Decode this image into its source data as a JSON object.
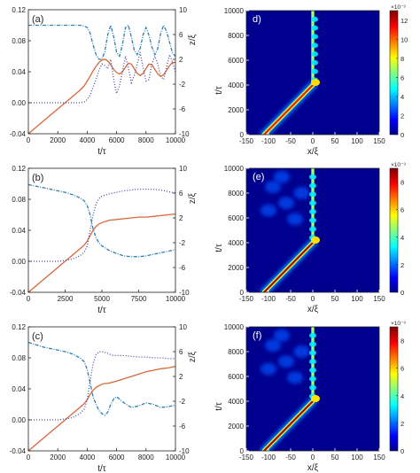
{
  "colors": {
    "curve_blue": "#2f7fb5",
    "curve_orange": "#d8673a",
    "curve_dot": "#4a4aa6",
    "axis": "#222222",
    "panel_bg": "#00008f"
  },
  "chart_data": [
    {
      "panel_label": "(a)",
      "type": "line",
      "xlabel": "t/τ",
      "ylabel_right": "z/ξ",
      "x_ticks": [
        "0",
        "2000",
        "4000",
        "6000",
        "8000",
        "10000"
      ],
      "y_left_ticks": [
        "-0.04",
        "0.00",
        "0.04",
        "0.08",
        "0.12"
      ],
      "y_right_ticks": [
        "-10",
        "-6",
        "-2",
        "2",
        "6",
        "10"
      ],
      "xlim": [
        0,
        10000
      ],
      "ylim_left": [
        -0.04,
        0.12
      ],
      "ylim_right": [
        -10,
        10
      ],
      "series": [
        {
          "x": [
            0,
            500,
            1000,
            1500,
            2000,
            2500,
            3000,
            3500,
            3800,
            4000,
            4200,
            4400,
            4600,
            4800,
            5000,
            5200,
            5400,
            5600,
            5800,
            6000,
            6200,
            6400,
            6600,
            6800,
            7000,
            7200,
            7400,
            7600,
            7800,
            8000,
            8200,
            8400,
            8600,
            8800,
            9000,
            9200,
            9400,
            9600,
            9800,
            10000
          ],
          "y": [
            0.1,
            0.1,
            0.1,
            0.1,
            0.1,
            0.1,
            0.1,
            0.1,
            0.099,
            0.097,
            0.09,
            0.075,
            0.062,
            0.056,
            0.056,
            0.066,
            0.088,
            0.1,
            0.085,
            0.065,
            0.06,
            0.075,
            0.097,
            0.1,
            0.085,
            0.068,
            0.062,
            0.07,
            0.088,
            0.097,
            0.087,
            0.072,
            0.062,
            0.07,
            0.09,
            0.1,
            0.092,
            0.078,
            0.064,
            0.06
          ]
        },
        {
          "x": [
            0,
            500,
            1000,
            1500,
            2000,
            2500,
            3000,
            3500,
            3800,
            4000,
            4200,
            4400,
            4600,
            4800,
            5000,
            5200,
            5400,
            5600,
            5800,
            6000,
            6200,
            6400,
            6600,
            6800,
            7000,
            7200,
            7400,
            7600,
            7800,
            8000,
            8200,
            8400,
            8600,
            8800,
            9000,
            9200,
            9400,
            9600,
            9800,
            10000
          ],
          "y": [
            -0.04,
            -0.032,
            -0.024,
            -0.016,
            -0.008,
            0.0,
            0.008,
            0.016,
            0.022,
            0.028,
            0.034,
            0.041,
            0.047,
            0.052,
            0.055,
            0.056,
            0.054,
            0.049,
            0.043,
            0.039,
            0.037,
            0.04,
            0.046,
            0.051,
            0.05,
            0.044,
            0.038,
            0.035,
            0.038,
            0.044,
            0.05,
            0.049,
            0.043,
            0.037,
            0.034,
            0.036,
            0.042,
            0.048,
            0.052,
            0.052
          ]
        },
        {
          "x": [
            0,
            500,
            1000,
            1500,
            2000,
            2500,
            3000,
            3500,
            3800,
            4000,
            4200,
            4400,
            4600,
            4800,
            5000,
            5200,
            5400,
            5600,
            5800,
            6000,
            6200,
            6400,
            6600,
            6800,
            7000,
            7200,
            7400,
            7600,
            7800,
            8000,
            8200,
            8400,
            8600,
            8800,
            9000,
            9200,
            9400,
            9600,
            9800,
            10000
          ],
          "y": [
            0.0,
            0.0,
            0.0,
            0.0,
            0.0,
            0.0,
            0.0,
            0.0,
            0.001,
            0.004,
            0.01,
            0.02,
            0.03,
            0.042,
            0.05,
            0.048,
            0.044,
            0.056,
            0.03,
            0.012,
            0.022,
            0.04,
            0.06,
            0.045,
            0.026,
            0.035,
            0.05,
            0.065,
            0.045,
            0.028,
            0.03,
            0.05,
            0.06,
            0.05,
            0.034,
            0.03,
            0.046,
            0.062,
            0.052,
            0.04
          ]
        }
      ]
    },
    {
      "panel_label": "(b)",
      "type": "line",
      "xlabel": "t/τ",
      "ylabel_right": "z/ξ",
      "x_ticks": [
        "0",
        "2500",
        "5000",
        "7500",
        "10000"
      ],
      "y_left_ticks": [
        "-0.04",
        "0.00",
        "0.04",
        "0.08",
        "0.12"
      ],
      "y_right_ticks": [
        "-10",
        "-6",
        "-2",
        "2",
        "6",
        "10"
      ],
      "xlim": [
        0,
        10000
      ],
      "ylim_left": [
        -0.04,
        0.12
      ],
      "ylim_right": [
        -10,
        10
      ],
      "series": [
        {
          "x": [
            0,
            500,
            1000,
            1500,
            2000,
            2500,
            3000,
            3500,
            3800,
            4000,
            4200,
            4400,
            4600,
            4800,
            5000,
            5500,
            6000,
            6500,
            7000,
            7500,
            8000,
            8500,
            9000,
            9500,
            10000
          ],
          "y": [
            0.099,
            0.097,
            0.095,
            0.093,
            0.091,
            0.089,
            0.086,
            0.082,
            0.078,
            0.072,
            0.06,
            0.042,
            0.03,
            0.024,
            0.02,
            0.014,
            0.01,
            0.007,
            0.006,
            0.006,
            0.007,
            0.009,
            0.011,
            0.013,
            0.015
          ]
        },
        {
          "x": [
            0,
            500,
            1000,
            1500,
            2000,
            2500,
            3000,
            3500,
            3800,
            4000,
            4200,
            4400,
            4600,
            4800,
            5000,
            5500,
            6000,
            6500,
            7000,
            7500,
            8000,
            8500,
            9000,
            9500,
            10000
          ],
          "y": [
            -0.04,
            -0.032,
            -0.024,
            -0.016,
            -0.008,
            0.0,
            0.008,
            0.016,
            0.021,
            0.026,
            0.033,
            0.04,
            0.045,
            0.048,
            0.05,
            0.053,
            0.054,
            0.055,
            0.056,
            0.057,
            0.057,
            0.058,
            0.059,
            0.06,
            0.061
          ]
        },
        {
          "x": [
            0,
            500,
            1000,
            1500,
            2000,
            2500,
            3000,
            3500,
            3800,
            4000,
            4200,
            4400,
            4600,
            4800,
            5000,
            5500,
            6000,
            6500,
            7000,
            7500,
            8000,
            8500,
            9000,
            9500,
            10000
          ],
          "y": [
            0.0,
            0.0,
            0.0,
            0.0,
            0.0,
            0.001,
            0.003,
            0.007,
            0.012,
            0.02,
            0.04,
            0.06,
            0.074,
            0.081,
            0.084,
            0.087,
            0.089,
            0.091,
            0.092,
            0.093,
            0.093,
            0.093,
            0.092,
            0.09,
            0.088
          ]
        }
      ]
    },
    {
      "panel_label": "(c)",
      "type": "line",
      "xlabel": "t/τ",
      "ylabel_right": "z/ξ",
      "x_ticks": [
        "0",
        "2000",
        "4000",
        "6000",
        "8000",
        "10000"
      ],
      "y_left_ticks": [
        "-0.04",
        "0.00",
        "0.04",
        "0.08",
        "0.12"
      ],
      "y_right_ticks": [
        "-10",
        "-6",
        "-2",
        "2",
        "6",
        "10"
      ],
      "xlim": [
        0,
        10000
      ],
      "ylim_left": [
        -0.04,
        0.12
      ],
      "ylim_right": [
        -10,
        10
      ],
      "series": [
        {
          "x": [
            0,
            500,
            1000,
            1500,
            2000,
            2500,
            3000,
            3500,
            3800,
            4000,
            4200,
            4400,
            4600,
            4800,
            5000,
            5200,
            5400,
            5600,
            5800,
            6000,
            6500,
            7000,
            7500,
            8000,
            8500,
            9000,
            9500,
            10000
          ],
          "y": [
            0.1,
            0.097,
            0.094,
            0.092,
            0.09,
            0.088,
            0.085,
            0.08,
            0.075,
            0.065,
            0.048,
            0.03,
            0.02,
            0.012,
            0.008,
            0.006,
            0.01,
            0.02,
            0.027,
            0.03,
            0.022,
            0.016,
            0.018,
            0.022,
            0.02,
            0.016,
            0.017,
            0.019
          ]
        },
        {
          "x": [
            0,
            500,
            1000,
            1500,
            2000,
            2500,
            3000,
            3500,
            3800,
            4000,
            4200,
            4400,
            4600,
            4800,
            5000,
            5200,
            5400,
            5600,
            5800,
            6000,
            6500,
            7000,
            7500,
            8000,
            8500,
            9000,
            9500,
            10000
          ],
          "y": [
            -0.04,
            -0.032,
            -0.024,
            -0.016,
            -0.008,
            0.0,
            0.008,
            0.016,
            0.021,
            0.026,
            0.033,
            0.038,
            0.042,
            0.044,
            0.046,
            0.047,
            0.047,
            0.048,
            0.049,
            0.05,
            0.053,
            0.056,
            0.059,
            0.062,
            0.064,
            0.066,
            0.067,
            0.069
          ]
        },
        {
          "x": [
            0,
            500,
            1000,
            1500,
            2000,
            2500,
            3000,
            3500,
            3800,
            4000,
            4200,
            4400,
            4600,
            4800,
            5000,
            5200,
            5400,
            5600,
            5800,
            6000,
            6500,
            7000,
            7500,
            8000,
            8500,
            9000,
            9500,
            10000
          ],
          "y": [
            0.0,
            0.0,
            0.0,
            0.0,
            0.0,
            0.001,
            0.003,
            0.008,
            0.014,
            0.026,
            0.05,
            0.072,
            0.084,
            0.088,
            0.088,
            0.087,
            0.086,
            0.084,
            0.083,
            0.083,
            0.083,
            0.082,
            0.081,
            0.081,
            0.08,
            0.08,
            0.079,
            0.079
          ]
        }
      ]
    },
    {
      "panel_label": "d)",
      "type": "heatmap",
      "xlabel": "x/ξ",
      "ylabel": "t/τ",
      "x_ticks": [
        "-150",
        "-100",
        "-50",
        "0",
        "50",
        "100",
        "150"
      ],
      "y_ticks": [
        "0",
        "2000",
        "4000",
        "6000",
        "8000",
        "10000"
      ],
      "xlim": [
        -150,
        150
      ],
      "ylim": [
        0,
        10000
      ],
      "colorbar": {
        "multiplier": "×10⁻³",
        "ticks": [
          "0",
          "2",
          "4",
          "6",
          "8",
          "10",
          "12"
        ],
        "max": 13
      },
      "traj": {
        "start_x": -110,
        "end_t": 4000,
        "end_x": 0,
        "peak": 11
      }
    },
    {
      "panel_label": "(e)",
      "type": "heatmap",
      "xlabel": "x/ξ",
      "ylabel": "t/τ",
      "x_ticks": [
        "-150",
        "-100",
        "-50",
        "0",
        "50",
        "100",
        "150"
      ],
      "y_ticks": [
        "0",
        "2000",
        "4000",
        "6000",
        "8000",
        "10000"
      ],
      "xlim": [
        -150,
        150
      ],
      "ylim": [
        0,
        10000
      ],
      "colorbar": {
        "multiplier": "×10⁻³",
        "ticks": [
          "0",
          "2",
          "4",
          "6",
          "8"
        ],
        "max": 9
      },
      "traj": {
        "start_x": -110,
        "end_t": 4000,
        "end_x": 0,
        "peak": 8.5
      }
    },
    {
      "panel_label": "(f)",
      "type": "heatmap",
      "xlabel": "x/ξ",
      "ylabel": "t/τ",
      "x_ticks": [
        "-150",
        "-100",
        "-50",
        "0",
        "50",
        "100",
        "150"
      ],
      "y_ticks": [
        "0",
        "2000",
        "4000",
        "6000",
        "8000",
        "10000"
      ],
      "xlim": [
        -150,
        150
      ],
      "ylim": [
        0,
        10000
      ],
      "colorbar": {
        "multiplier": "×10⁻³",
        "ticks": [
          "0",
          "2",
          "4",
          "6",
          "8"
        ],
        "max": 9
      },
      "traj": {
        "start_x": -110,
        "end_t": 4000,
        "end_x": 0,
        "peak": 8.5
      }
    }
  ]
}
